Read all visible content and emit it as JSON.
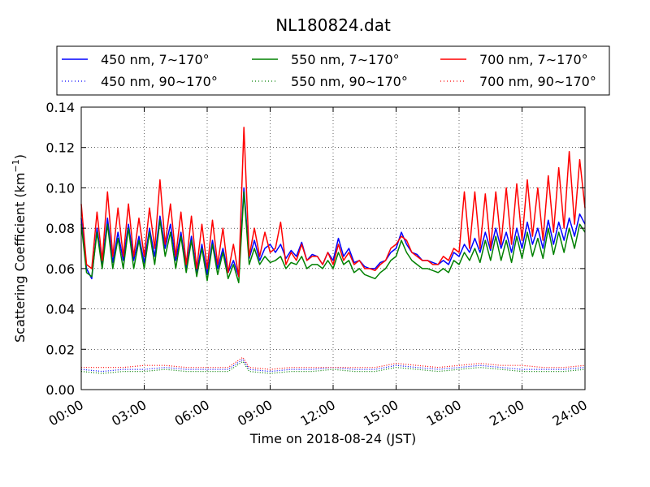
{
  "chart_data": {
    "type": "line",
    "title": "NL180824.dat",
    "xlabel": "Time on 2018-08-24 (JST)",
    "ylabel": "Scattering Coefficient (km",
    "ylabel_sup": "−1",
    "ylabel_close": ")",
    "x_range_hours": [
      0,
      24
    ],
    "ylim": [
      0.0,
      0.14
    ],
    "x_ticks": [
      "00:00",
      "03:00",
      "06:00",
      "09:00",
      "12:00",
      "15:00",
      "18:00",
      "21:00",
      "24:00"
    ],
    "y_ticks": [
      "0.00",
      "0.02",
      "0.04",
      "0.06",
      "0.08",
      "0.10",
      "0.12",
      "0.14"
    ],
    "grid": true,
    "legend_position": "top",
    "colors": {
      "blue": "#0000ff",
      "green": "#008000",
      "red": "#ff0000"
    },
    "series": [
      {
        "name": "450 nm, 7∼170°",
        "color": "#0000ff",
        "style": "solid",
        "x": [
          0.0,
          0.25,
          0.5,
          0.75,
          1.0,
          1.25,
          1.5,
          1.75,
          2.0,
          2.25,
          2.5,
          2.75,
          3.0,
          3.25,
          3.5,
          3.75,
          4.0,
          4.25,
          4.5,
          4.75,
          5.0,
          5.25,
          5.5,
          5.75,
          6.0,
          6.25,
          6.5,
          6.75,
          7.0,
          7.25,
          7.5,
          7.75,
          8.0,
          8.25,
          8.5,
          8.75,
          9.0,
          9.25,
          9.5,
          9.75,
          10.0,
          10.25,
          10.5,
          10.75,
          11.0,
          11.25,
          11.5,
          11.75,
          12.0,
          12.25,
          12.5,
          12.75,
          13.0,
          13.25,
          13.5,
          13.75,
          14.0,
          14.25,
          14.5,
          14.75,
          15.0,
          15.25,
          15.5,
          15.75,
          16.0,
          16.25,
          16.5,
          16.75,
          17.0,
          17.25,
          17.5,
          17.75,
          18.0,
          18.25,
          18.5,
          18.75,
          19.0,
          19.25,
          19.5,
          19.75,
          20.0,
          20.25,
          20.5,
          20.75,
          21.0,
          21.25,
          21.5,
          21.75,
          22.0,
          22.25,
          22.5,
          22.75,
          23.0,
          23.25,
          23.5,
          23.75,
          24.0
        ],
        "y": [
          0.085,
          0.06,
          0.055,
          0.08,
          0.062,
          0.085,
          0.063,
          0.078,
          0.064,
          0.082,
          0.064,
          0.076,
          0.063,
          0.08,
          0.066,
          0.086,
          0.07,
          0.082,
          0.064,
          0.078,
          0.06,
          0.076,
          0.058,
          0.072,
          0.057,
          0.074,
          0.06,
          0.07,
          0.058,
          0.064,
          0.056,
          0.1,
          0.065,
          0.074,
          0.064,
          0.07,
          0.072,
          0.068,
          0.072,
          0.065,
          0.069,
          0.066,
          0.073,
          0.064,
          0.067,
          0.066,
          0.062,
          0.068,
          0.064,
          0.075,
          0.066,
          0.07,
          0.063,
          0.064,
          0.061,
          0.06,
          0.06,
          0.063,
          0.064,
          0.068,
          0.07,
          0.078,
          0.072,
          0.068,
          0.067,
          0.064,
          0.064,
          0.063,
          0.062,
          0.064,
          0.062,
          0.068,
          0.066,
          0.072,
          0.068,
          0.075,
          0.068,
          0.078,
          0.069,
          0.08,
          0.07,
          0.078,
          0.068,
          0.08,
          0.07,
          0.083,
          0.072,
          0.08,
          0.07,
          0.084,
          0.072,
          0.083,
          0.074,
          0.085,
          0.076,
          0.087,
          0.082
        ]
      },
      {
        "name": "550 nm, 7∼170°",
        "color": "#008000",
        "style": "solid",
        "x": [
          0.0,
          0.25,
          0.5,
          0.75,
          1.0,
          1.25,
          1.5,
          1.75,
          2.0,
          2.25,
          2.5,
          2.75,
          3.0,
          3.25,
          3.5,
          3.75,
          4.0,
          4.25,
          4.5,
          4.75,
          5.0,
          5.25,
          5.5,
          5.75,
          6.0,
          6.25,
          6.5,
          6.75,
          7.0,
          7.25,
          7.5,
          7.75,
          8.0,
          8.25,
          8.5,
          8.75,
          9.0,
          9.25,
          9.5,
          9.75,
          10.0,
          10.25,
          10.5,
          10.75,
          11.0,
          11.25,
          11.5,
          11.75,
          12.0,
          12.25,
          12.5,
          12.75,
          13.0,
          13.25,
          13.5,
          13.75,
          14.0,
          14.25,
          14.5,
          14.75,
          15.0,
          15.25,
          15.5,
          15.75,
          16.0,
          16.25,
          16.5,
          16.75,
          17.0,
          17.25,
          17.5,
          17.75,
          18.0,
          18.25,
          18.5,
          18.75,
          19.0,
          19.25,
          19.5,
          19.75,
          20.0,
          20.25,
          20.5,
          20.75,
          21.0,
          21.25,
          21.5,
          21.75,
          22.0,
          22.25,
          22.5,
          22.75,
          23.0,
          23.25,
          23.5,
          23.75,
          24.0
        ],
        "y": [
          0.082,
          0.058,
          0.056,
          0.078,
          0.06,
          0.082,
          0.06,
          0.075,
          0.06,
          0.08,
          0.06,
          0.074,
          0.06,
          0.078,
          0.062,
          0.084,
          0.066,
          0.078,
          0.06,
          0.076,
          0.058,
          0.074,
          0.056,
          0.07,
          0.054,
          0.072,
          0.057,
          0.068,
          0.055,
          0.062,
          0.053,
          0.098,
          0.062,
          0.07,
          0.062,
          0.066,
          0.063,
          0.064,
          0.066,
          0.06,
          0.063,
          0.062,
          0.066,
          0.06,
          0.062,
          0.062,
          0.06,
          0.064,
          0.06,
          0.068,
          0.062,
          0.064,
          0.058,
          0.06,
          0.057,
          0.056,
          0.055,
          0.058,
          0.06,
          0.064,
          0.066,
          0.074,
          0.068,
          0.064,
          0.062,
          0.06,
          0.06,
          0.059,
          0.058,
          0.06,
          0.058,
          0.064,
          0.062,
          0.068,
          0.064,
          0.07,
          0.063,
          0.074,
          0.064,
          0.076,
          0.064,
          0.074,
          0.063,
          0.076,
          0.065,
          0.078,
          0.066,
          0.075,
          0.065,
          0.08,
          0.067,
          0.078,
          0.068,
          0.08,
          0.07,
          0.082,
          0.078
        ]
      },
      {
        "name": "700 nm, 7∼170°",
        "color": "#ff0000",
        "style": "solid",
        "x": [
          0.0,
          0.25,
          0.5,
          0.75,
          1.0,
          1.25,
          1.5,
          1.75,
          2.0,
          2.25,
          2.5,
          2.75,
          3.0,
          3.25,
          3.5,
          3.75,
          4.0,
          4.25,
          4.5,
          4.75,
          5.0,
          5.25,
          5.5,
          5.75,
          6.0,
          6.25,
          6.5,
          6.75,
          7.0,
          7.25,
          7.5,
          7.75,
          8.0,
          8.25,
          8.5,
          8.75,
          9.0,
          9.25,
          9.5,
          9.75,
          10.0,
          10.25,
          10.5,
          10.75,
          11.0,
          11.25,
          11.5,
          11.75,
          12.0,
          12.25,
          12.5,
          12.75,
          13.0,
          13.25,
          13.5,
          13.75,
          14.0,
          14.25,
          14.5,
          14.75,
          15.0,
          15.25,
          15.5,
          15.75,
          16.0,
          16.25,
          16.5,
          16.75,
          17.0,
          17.25,
          17.5,
          17.75,
          18.0,
          18.25,
          18.5,
          18.75,
          19.0,
          19.25,
          19.5,
          19.75,
          20.0,
          20.25,
          20.5,
          20.75,
          21.0,
          21.25,
          21.5,
          21.75,
          22.0,
          22.25,
          22.5,
          22.75,
          23.0,
          23.25,
          23.5,
          23.75,
          24.0
        ],
        "y": [
          0.092,
          0.062,
          0.06,
          0.088,
          0.064,
          0.098,
          0.066,
          0.09,
          0.066,
          0.092,
          0.066,
          0.085,
          0.066,
          0.09,
          0.07,
          0.104,
          0.072,
          0.092,
          0.066,
          0.088,
          0.062,
          0.086,
          0.06,
          0.082,
          0.06,
          0.084,
          0.062,
          0.08,
          0.058,
          0.072,
          0.056,
          0.13,
          0.066,
          0.08,
          0.066,
          0.078,
          0.068,
          0.07,
          0.083,
          0.062,
          0.068,
          0.064,
          0.072,
          0.064,
          0.066,
          0.066,
          0.062,
          0.068,
          0.062,
          0.072,
          0.064,
          0.068,
          0.062,
          0.064,
          0.06,
          0.06,
          0.059,
          0.062,
          0.064,
          0.07,
          0.072,
          0.076,
          0.074,
          0.068,
          0.066,
          0.064,
          0.064,
          0.062,
          0.062,
          0.066,
          0.064,
          0.07,
          0.068,
          0.098,
          0.07,
          0.098,
          0.07,
          0.097,
          0.07,
          0.098,
          0.072,
          0.1,
          0.072,
          0.102,
          0.074,
          0.104,
          0.076,
          0.1,
          0.074,
          0.106,
          0.078,
          0.11,
          0.08,
          0.118,
          0.082,
          0.114,
          0.09
        ]
      },
      {
        "name": "450 nm, 90∼170°",
        "color": "#0000ff",
        "style": "dotted",
        "x": [
          0,
          1,
          2,
          3,
          4,
          5,
          6,
          7,
          7.7,
          8,
          9,
          10,
          11,
          12,
          13,
          14,
          15,
          16,
          17,
          18,
          19,
          20,
          21,
          22,
          23,
          24
        ],
        "y": [
          0.01,
          0.009,
          0.01,
          0.01,
          0.011,
          0.01,
          0.01,
          0.01,
          0.015,
          0.01,
          0.009,
          0.01,
          0.01,
          0.011,
          0.01,
          0.01,
          0.012,
          0.011,
          0.01,
          0.011,
          0.012,
          0.011,
          0.01,
          0.01,
          0.01,
          0.011
        ]
      },
      {
        "name": "550 nm, 90∼170°",
        "color": "#008000",
        "style": "dotted",
        "x": [
          0,
          1,
          2,
          3,
          4,
          5,
          6,
          7,
          7.7,
          8,
          9,
          10,
          11,
          12,
          13,
          14,
          15,
          16,
          17,
          18,
          19,
          20,
          21,
          22,
          23,
          24
        ],
        "y": [
          0.009,
          0.008,
          0.009,
          0.009,
          0.01,
          0.009,
          0.009,
          0.009,
          0.014,
          0.009,
          0.008,
          0.009,
          0.009,
          0.01,
          0.009,
          0.009,
          0.011,
          0.01,
          0.009,
          0.01,
          0.011,
          0.01,
          0.009,
          0.009,
          0.009,
          0.01
        ]
      },
      {
        "name": "700 nm, 90∼170°",
        "color": "#ff0000",
        "style": "dotted",
        "x": [
          0,
          1,
          2,
          3,
          4,
          5,
          6,
          7,
          7.7,
          8,
          9,
          10,
          11,
          12,
          13,
          14,
          15,
          16,
          17,
          18,
          19,
          20,
          21,
          22,
          23,
          24
        ],
        "y": [
          0.011,
          0.011,
          0.011,
          0.012,
          0.012,
          0.011,
          0.011,
          0.011,
          0.016,
          0.011,
          0.01,
          0.011,
          0.011,
          0.011,
          0.011,
          0.011,
          0.013,
          0.012,
          0.011,
          0.012,
          0.013,
          0.012,
          0.012,
          0.011,
          0.011,
          0.012
        ]
      }
    ]
  }
}
